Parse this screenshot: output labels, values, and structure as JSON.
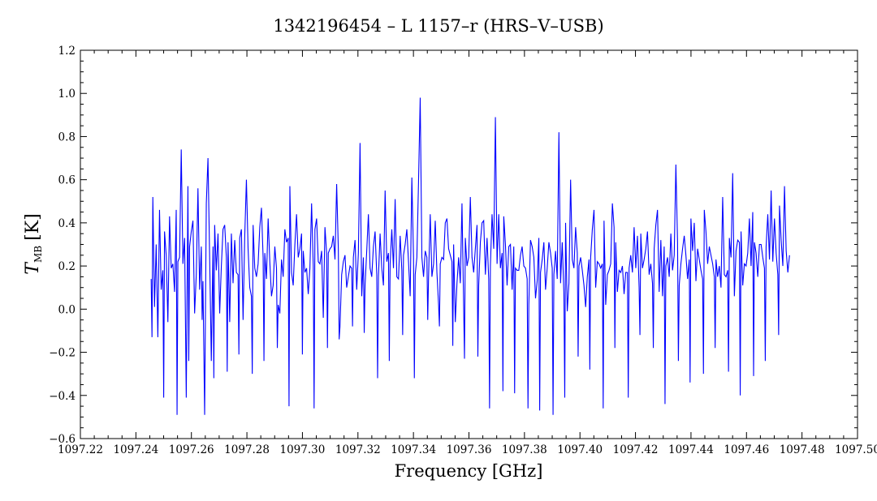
{
  "chart_data": {
    "type": "line",
    "title": "1342196454 – L 1157–r (HRS–V–USB)",
    "xlabel": "Frequency [GHz]",
    "ylabel": {
      "symbol": "T",
      "subscript": "MB",
      "unit": "[K]"
    },
    "xlim": [
      1097.22,
      1097.5
    ],
    "ylim": [
      -0.6,
      1.2
    ],
    "x_ticks": [
      "1097.22",
      "1097.24",
      "1097.26",
      "1097.28",
      "1097.30",
      "1097.32",
      "1097.34",
      "1097.36",
      "1097.38",
      "1097.40",
      "1097.42",
      "1097.44",
      "1097.46",
      "1097.48",
      "1097.50"
    ],
    "x_tick_values": [
      1097.22,
      1097.24,
      1097.26,
      1097.28,
      1097.3,
      1097.32,
      1097.34,
      1097.36,
      1097.38,
      1097.4,
      1097.42,
      1097.44,
      1097.46,
      1097.48,
      1097.5
    ],
    "y_ticks": [
      "1.2",
      "1.0",
      "0.8",
      "0.6",
      "0.4",
      "0.2",
      "0.0",
      "−0.2",
      "−0.4",
      "−0.6"
    ],
    "y_tick_values": [
      1.2,
      1.0,
      0.8,
      0.6,
      0.4,
      0.2,
      0.0,
      -0.2,
      -0.4,
      -0.6
    ],
    "x_range": [
      1097.2455,
      1097.4755
    ],
    "grid": false,
    "series": [
      {
        "color": "#0000ff",
        "y": [
          0.14,
          0.52,
          0.01,
          0.3,
          -0.13,
          0.46,
          0.09,
          0.18,
          0.36,
          0.25,
          -0.06,
          0.43,
          0.19,
          0.21,
          0.08,
          0.46,
          0.22,
          0.24,
          0.74,
          0.21,
          0.33,
          -0.41,
          0.57,
          0.29,
          0.36,
          0.41,
          -0.02,
          0.16,
          0.56,
          0.09,
          0.29,
          0.13,
          -0.49,
          0.49,
          0.7,
          0.24,
          -0.24,
          0.29,
          0.39,
          0.18,
          0.35,
          -0.02,
          0.2,
          0.37,
          0.39,
          0.24,
          0.31,
          -0.06,
          0.35,
          0.12,
          0.32,
          0.17,
          0.16,
          0.33,
          0.37,
          -0.05,
          0.34,
          0.6,
          0.28,
          0.1,
          0.06,
          0.39,
          0.19,
          0.15,
          0.21,
          0.38,
          0.47,
          0.24,
          0.26,
          0.14,
          0.42,
          0.22,
          0.06,
          0.11,
          0.29,
          0.19,
          0.02,
          -0.02,
          0.23,
          0.15,
          0.37,
          0.31,
          0.33,
          0.57,
          0.17,
          0.11,
          0.3,
          0.44,
          0.24,
          0.28,
          0.35,
          0.27,
          0.17,
          0.19,
          0.07,
          0.19,
          0.49,
          0.2,
          0.37,
          0.42,
          0.22,
          0.21,
          0.27,
          -0.04,
          0.38,
          0.26,
          0.26,
          0.28,
          0.29,
          0.34,
          0.23,
          0.58,
          0.28,
          -0.08,
          0.16,
          0.22,
          0.25,
          0.1,
          0.15,
          0.2,
          0.19,
          0.24,
          0.32,
          0.09,
          0.26,
          0.77,
          0.06,
          0.24,
          0.11,
          0.27,
          0.44,
          0.19,
          0.15,
          0.29,
          0.36,
          0.16,
          0.15,
          0.35,
          0.19,
          0.11,
          0.55,
          0.22,
          0.26,
          0.21,
          0.37,
          0.19,
          0.51,
          0.15,
          0.14,
          0.34,
          0.18,
          0.25,
          0.3,
          0.37,
          0.22,
          0.06,
          0.61,
          0.24,
          0.16,
          0.24,
          0.59,
          0.98,
          0.24,
          0.15,
          0.27,
          0.24,
          0.15,
          0.44,
          0.15,
          0.21,
          0.41,
          0.17,
          0.02,
          0.21,
          0.24,
          0.23,
          0.4,
          0.42,
          0.28,
          0.25,
          0.22,
          0.3,
          -0.06,
          0.12,
          0.24,
          0.12,
          0.49,
          0.01,
          0.33,
          0.2,
          0.24,
          0.52,
          0.24,
          0.17,
          0.28,
          0.39,
          0.11,
          0.31,
          0.4,
          0.41,
          0.16,
          0.33,
          0.14,
          0.2,
          0.44,
          0.28,
          0.89,
          0.21,
          0.44,
          0.19,
          0.26,
          0.43,
          0.3,
          0.11,
          0.29,
          0.3,
          0.09,
          0.29,
          0.19,
          0.18,
          0.18,
          0.25,
          0.29,
          0.2,
          0.19,
          0.14,
          0.02,
          0.32,
          0.29,
          0.24,
          0.05,
          0.13,
          0.33,
          0.17,
          0.23,
          0.31,
          0.09,
          0.19,
          0.31,
          0.26,
          0.19,
          0.16,
          0.27,
          0.14,
          0.82,
          0.12,
          0.31,
          0.07,
          0.4,
          -0.01,
          0.12,
          0.6,
          0.23,
          0.19,
          0.38,
          0.26,
          0.2,
          0.24,
          0.18,
          0.11,
          0.01,
          0.15,
          0.23,
          0.24,
          0.37,
          0.46,
          0.1,
          0.22,
          0.21,
          0.19,
          0.21,
          0.41,
          0.02,
          0.16,
          0.18,
          0.21,
          0.49,
          0.38,
          0.31,
          0.08,
          0.18,
          0.17,
          0.2,
          0.07,
          0.17,
          0.17,
          0.19,
          0.25,
          0.17,
          0.38,
          0.19,
          0.34,
          0.1,
          0.35,
          0.19,
          0.23,
          0.28,
          0.36,
          0.16,
          0.21,
          0.12,
          0.28,
          0.39,
          0.46,
          0.08,
          0.32,
          0.06,
          0.29,
          0.2,
          0.24,
          0.15,
          0.35,
          0.18,
          0.25,
          0.67,
          0.31,
          0.11,
          0.21,
          0.28,
          0.34,
          0.25,
          0.14,
          0.23,
          0.42,
          0.27,
          0.4,
          0.13,
          0.28,
          0.23,
          0.18,
          0.14,
          0.46,
          0.36,
          0.21,
          0.29,
          0.25,
          0.21,
          0.15,
          0.23,
          0.15,
          0.2,
          0.1,
          0.52,
          0.16,
          0.15,
          0.18,
          0.33,
          0.24,
          0.63,
          0.06,
          0.27,
          0.32,
          0.31,
          0.36,
          0.11,
          0.21,
          0.2,
          0.26,
          0.42,
          0.2,
          0.45,
          0.31,
          0.26,
          0.15,
          0.3,
          0.3,
          0.24,
          0.19,
          0.29,
          0.44,
          0.23,
          0.55,
          0.22,
          0.42,
          0.26,
          0.16,
          0.48,
          0.32,
          0.2,
          0.57,
          0.27,
          0.17,
          0.25
        ],
        "lows": [
          -0.13,
          -0.41,
          -0.49,
          -0.24,
          -0.05,
          -0.32,
          -0.29,
          -0.21,
          -0.3,
          -0.24,
          -0.18,
          -0.45,
          -0.21,
          -0.46,
          -0.18,
          -0.14,
          -0.08,
          -0.11,
          -0.32,
          -0.24,
          -0.12,
          -0.32,
          -0.05,
          -0.08,
          -0.17,
          -0.23,
          -0.22,
          -0.46,
          -0.38,
          -0.39,
          -0.46,
          -0.47,
          -0.49,
          -0.41,
          -0.22,
          -0.28,
          -0.46,
          -0.18,
          -0.41,
          -0.12,
          -0.18,
          -0.44,
          -0.24,
          -0.34,
          -0.3,
          -0.18,
          -0.29,
          -0.4,
          -0.31,
          -0.24,
          -0.12
        ]
      }
    ]
  }
}
